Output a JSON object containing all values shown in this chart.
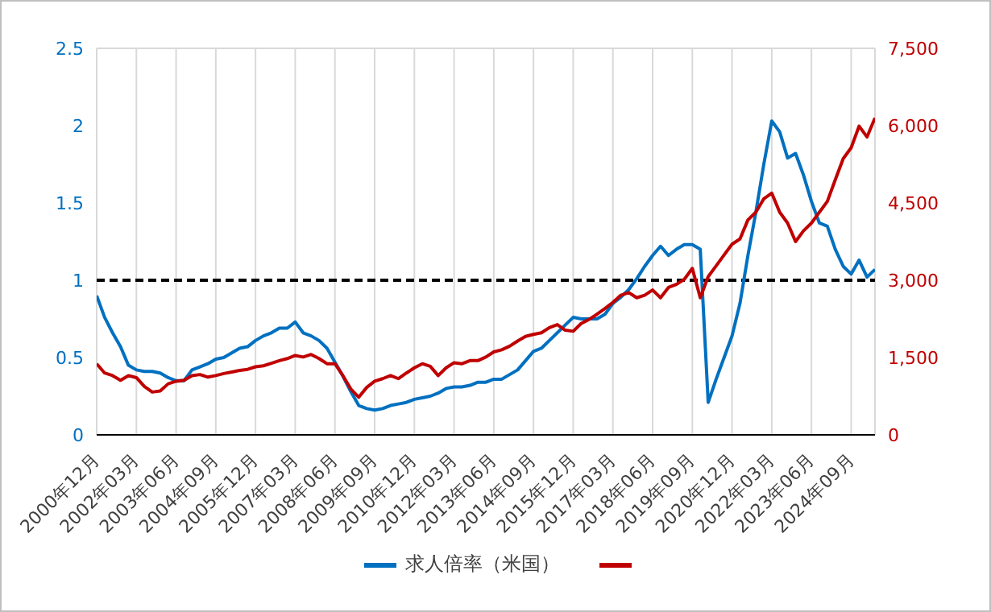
{
  "chart_data": {
    "type": "line",
    "categories": [
      "2000年12月",
      null,
      null,
      null,
      null,
      "2002年03月",
      null,
      null,
      null,
      null,
      "2003年06月",
      null,
      null,
      null,
      null,
      "2004年09月",
      null,
      null,
      null,
      null,
      "2005年12月",
      null,
      null,
      null,
      null,
      "2007年03月",
      null,
      null,
      null,
      null,
      "2008年06月",
      null,
      null,
      null,
      null,
      "2009年09月",
      null,
      null,
      null,
      null,
      "2010年12月",
      null,
      null,
      null,
      null,
      "2012年03月",
      null,
      null,
      null,
      null,
      "2013年06月",
      null,
      null,
      null,
      null,
      "2014年09月",
      null,
      null,
      null,
      null,
      "2015年12月",
      null,
      null,
      null,
      null,
      "2017年03月",
      null,
      null,
      null,
      null,
      "2018年06月",
      null,
      null,
      null,
      null,
      "2019年09月",
      null,
      null,
      null,
      null,
      "2020年12月",
      null,
      null,
      null,
      null,
      "2022年03月",
      null,
      null,
      null,
      null,
      "2023年06月",
      null,
      null,
      null,
      null,
      "2024年09月",
      null,
      null,
      null
    ],
    "series": [
      {
        "name": "求人倍率（米国）",
        "color": "#0070c0",
        "values": [
          0.9,
          0.76,
          0.66,
          0.57,
          0.45,
          0.42,
          0.41,
          0.41,
          0.4,
          0.37,
          0.35,
          0.35,
          0.42,
          0.44,
          0.46,
          0.49,
          0.5,
          0.53,
          0.56,
          0.57,
          0.61,
          0.64,
          0.66,
          0.69,
          0.69,
          0.73,
          0.66,
          0.64,
          0.61,
          0.56,
          0.47,
          0.38,
          0.28,
          0.19,
          0.17,
          0.16,
          0.17,
          0.19,
          0.2,
          0.21,
          0.23,
          0.24,
          0.25,
          0.27,
          0.3,
          0.31,
          0.31,
          0.32,
          0.34,
          0.34,
          0.36,
          0.36,
          0.39,
          0.42,
          0.48,
          0.54,
          0.56,
          0.61,
          0.66,
          0.71,
          0.76,
          0.75,
          0.75,
          0.75,
          0.78,
          0.85,
          0.89,
          0.94,
          1.01,
          1.09,
          1.16,
          1.22,
          1.16,
          1.2,
          1.23,
          1.23,
          1.2,
          0.21,
          0.36,
          0.5,
          0.64,
          0.85,
          1.16,
          1.44,
          1.75,
          2.03,
          1.96,
          1.79,
          1.82,
          1.68,
          1.51,
          1.37,
          1.35,
          1.2,
          1.09,
          1.04,
          1.13,
          1.02,
          1.07
        ]
      },
      {
        "color": "#c00000",
        "axis": "y2",
        "values": [
          1380,
          1200,
          1150,
          1060,
          1150,
          1110,
          940,
          830,
          850,
          990,
          1040,
          1060,
          1150,
          1170,
          1120,
          1150,
          1190,
          1220,
          1250,
          1270,
          1320,
          1340,
          1390,
          1440,
          1480,
          1540,
          1510,
          1560,
          1480,
          1380,
          1380,
          1150,
          890,
          730,
          920,
          1040,
          1090,
          1150,
          1090,
          1200,
          1300,
          1380,
          1330,
          1150,
          1300,
          1400,
          1380,
          1440,
          1440,
          1510,
          1610,
          1650,
          1720,
          1820,
          1910,
          1950,
          1980,
          2080,
          2140,
          2030,
          2010,
          2160,
          2240,
          2340,
          2450,
          2570,
          2710,
          2760,
          2660,
          2710,
          2810,
          2660,
          2860,
          2920,
          3020,
          3230,
          2660,
          3070,
          3280,
          3490,
          3700,
          3800,
          4170,
          4320,
          4580,
          4690,
          4320,
          4110,
          3750,
          3960,
          4110,
          4320,
          4530,
          4950,
          5360,
          5570,
          5990,
          5780,
          6150
        ]
      }
    ],
    "ylim": [
      0,
      2.5
    ],
    "yticks": [
      0,
      0.5,
      1,
      1.5,
      2,
      2.5
    ],
    "y2lim": [
      0,
      7500
    ],
    "y2ticks": [
      0,
      {
        "value": 1500,
        "label": "1,500"
      },
      {
        "value": 3000,
        "label": "3,000"
      },
      {
        "value": 4500,
        "label": "4,500"
      },
      {
        "value": 6000,
        "label": "6,000"
      },
      {
        "value": 7500,
        "label": "7,500"
      }
    ],
    "ref_lines": [
      {
        "axis": "y",
        "value": 1,
        "color": "#000000",
        "line_style": "dashed"
      }
    ],
    "grid": true,
    "legend": "bottom",
    "marker": "none",
    "line_style": "solid"
  }
}
